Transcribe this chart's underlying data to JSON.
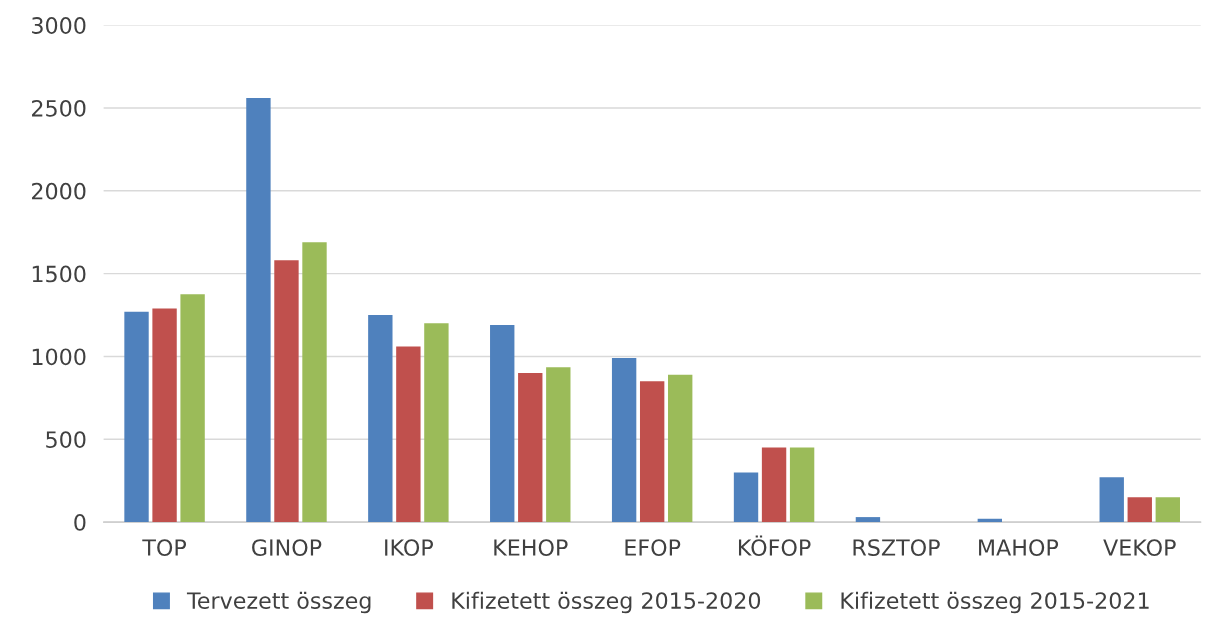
{
  "chart_data": {
    "type": "bar",
    "categories": [
      "TOP",
      "GINOP",
      "IKOP",
      "KEHOP",
      "EFOP",
      "KÖFOP",
      "RSZTOP",
      "MAHOP",
      "VEKOP"
    ],
    "series": [
      {
        "name": "Tervezett összeg",
        "color": "#4f81bd",
        "values": [
          1270,
          2560,
          1250,
          1190,
          990,
          300,
          30,
          20,
          270
        ]
      },
      {
        "name": "Kifizetett összeg 2015-2020",
        "color": "#c0504d",
        "values": [
          1290,
          1580,
          1060,
          900,
          850,
          450,
          0,
          0,
          150
        ]
      },
      {
        "name": "Kifizetett összeg 2015-2021",
        "color": "#9bbb59",
        "values": [
          1375,
          1690,
          1200,
          935,
          890,
          450,
          0,
          0,
          150
        ]
      }
    ],
    "ylim": [
      0,
      3000
    ],
    "yticks": [
      0,
      500,
      1000,
      1500,
      2000,
      2500,
      3000
    ],
    "grid": "y",
    "legend": "bottom"
  }
}
